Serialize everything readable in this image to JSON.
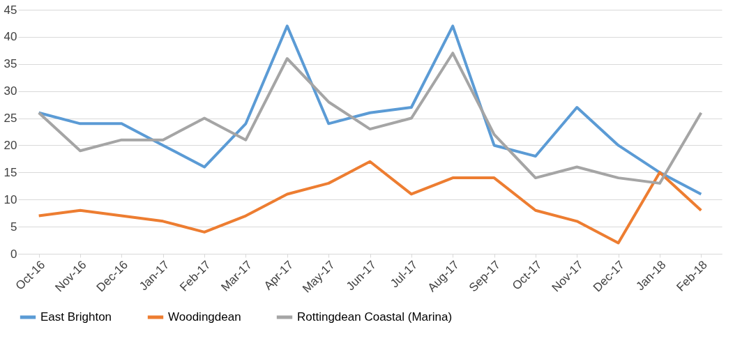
{
  "chart_data": {
    "type": "line",
    "categories": [
      "Oct-16",
      "Nov-16",
      "Dec-16",
      "Jan-17",
      "Feb-17",
      "Mar-17",
      "Apr-17",
      "May-17",
      "Jun-17",
      "Jul-17",
      "Aug-17",
      "Sep-17",
      "Oct-17",
      "Nov-17",
      "Dec-17",
      "Jan-18",
      "Feb-18"
    ],
    "series": [
      {
        "name": "East Brighton",
        "color": "#5b9bd5",
        "values": [
          26,
          24,
          24,
          20,
          16,
          24,
          42,
          24,
          26,
          27,
          42,
          20,
          18,
          27,
          20,
          15,
          11
        ]
      },
      {
        "name": "Woodingdean",
        "color": "#ed7d31",
        "values": [
          7,
          8,
          7,
          6,
          4,
          7,
          11,
          13,
          17,
          11,
          14,
          14,
          8,
          6,
          2,
          15,
          8
        ]
      },
      {
        "name": "Rottingdean Coastal (Marina)",
        "color": "#a5a5a5",
        "values": [
          26,
          19,
          21,
          21,
          25,
          21,
          36,
          28,
          23,
          25,
          37,
          22,
          14,
          16,
          14,
          13,
          26
        ]
      }
    ],
    "ylim": [
      0,
      45
    ],
    "yticks": [
      0,
      5,
      10,
      15,
      20,
      25,
      30,
      35,
      40,
      45
    ],
    "grid": "y",
    "legend": "bottom",
    "marker": "none",
    "line_style": "solid"
  }
}
